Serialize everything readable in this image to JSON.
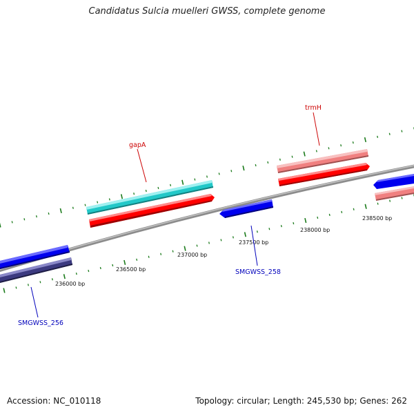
{
  "title": "Candidatus Sulcia muelleri GWSS, complete genome",
  "footer": {
    "accession": "Accession: NC_010118",
    "summary": "Topology: circular; Length: 245,530 bp; Genes: 262"
  },
  "ruler": {
    "labels": [
      "236000 bp",
      "236500 bp",
      "237000 bp",
      "237500 bp",
      "238000 bp",
      "238500 bp"
    ]
  },
  "gene_labels": {
    "gapA": "gapA",
    "trmH": "trmH",
    "smgwss_256": "SMGWSS_256",
    "smgwss_258": "SMGWSS_258"
  },
  "colors": {
    "backbone": "#8c8c8c",
    "tick": "#1a7a1a",
    "cds_forward": "#ff0000",
    "cds_reverse": "#0000ee",
    "gapA_feature": "#22c8c8",
    "trmH_feature": "#f08080",
    "reverse_feature": "#3c3a80",
    "label_red": "#cc0000",
    "label_blue": "#0000bb"
  }
}
